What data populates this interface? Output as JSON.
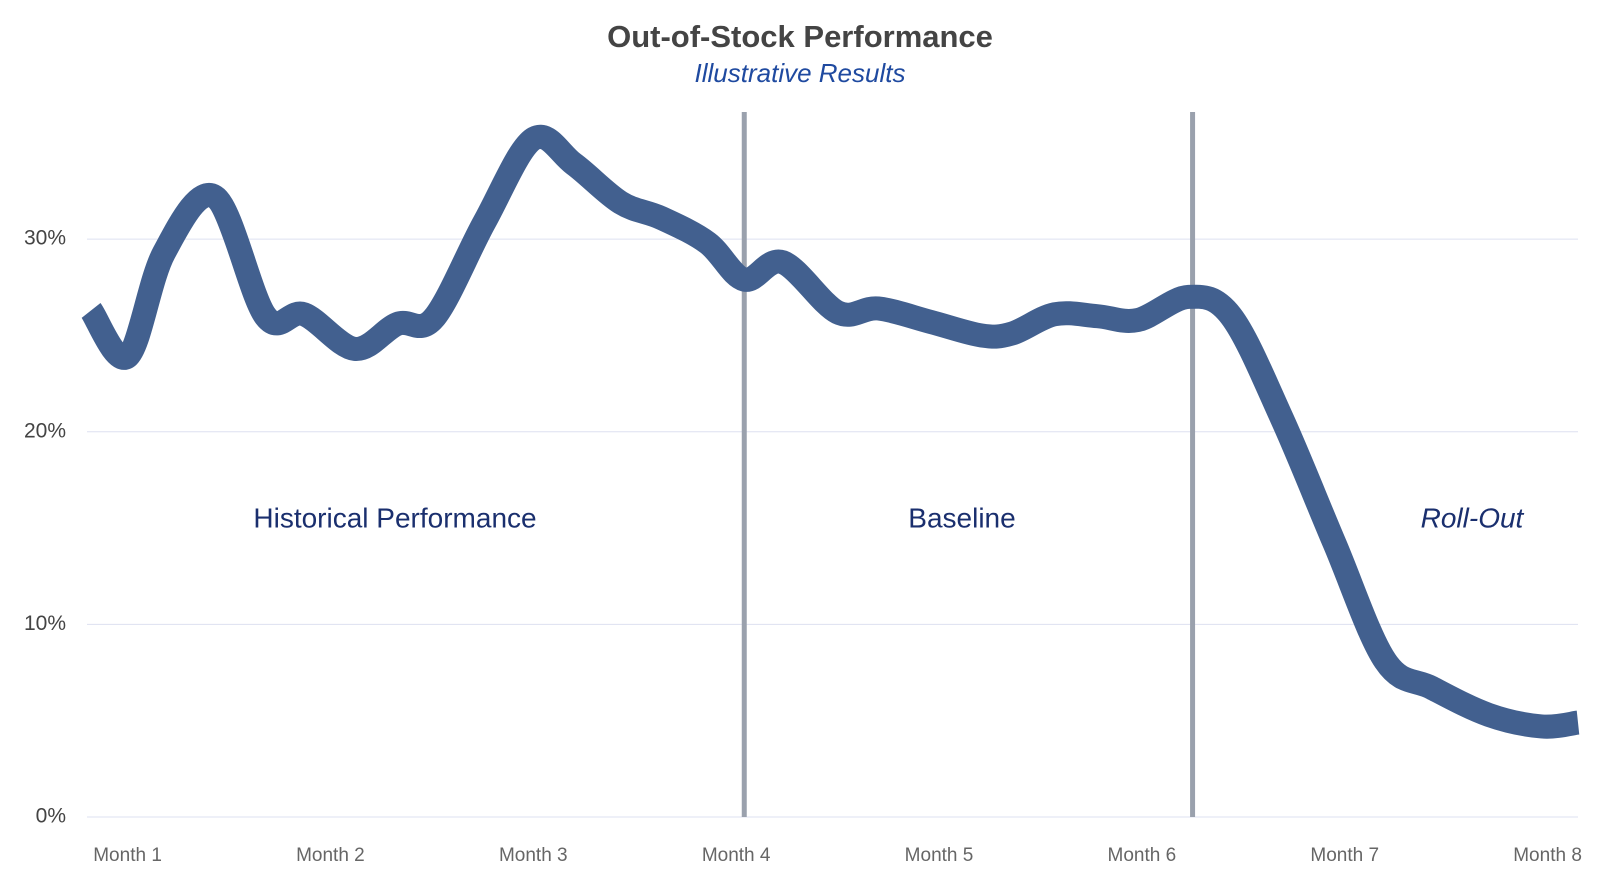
{
  "chart_data": {
    "type": "line",
    "title": "Out-of-Stock Performance",
    "subtitle": "Illustrative Results",
    "x": [
      0.82,
      1.0,
      1.18,
      1.43,
      1.68,
      1.87,
      2.12,
      2.33,
      2.51,
      2.76,
      3.0,
      3.2,
      3.43,
      3.63,
      3.86,
      4.04,
      4.23,
      4.5,
      4.7,
      4.96,
      5.21,
      5.36,
      5.57,
      5.78,
      5.98,
      6.23,
      6.44,
      6.69,
      6.95,
      7.2,
      7.43,
      7.71,
      7.97,
      8.15
    ],
    "series": [
      {
        "name": "Out-of-Stock",
        "color": "#42608f",
        "values": [
          26.3,
          23.9,
          29.3,
          32.2,
          26.0,
          26.1,
          24.3,
          25.6,
          25.9,
          30.9,
          35.2,
          33.9,
          31.9,
          31.1,
          29.8,
          27.9,
          28.8,
          26.2,
          26.4,
          25.7,
          25.0,
          25.1,
          26.1,
          26.0,
          25.8,
          27.0,
          26.0,
          20.7,
          14.2,
          8.1,
          6.7,
          5.3,
          4.7,
          4.9
        ]
      }
    ],
    "xlim": [
      0.8,
      8.15
    ],
    "xticks": [
      {
        "value": 1,
        "label": "Month 1"
      },
      {
        "value": 2,
        "label": "Month 2"
      },
      {
        "value": 3,
        "label": "Month 3"
      },
      {
        "value": 4,
        "label": "Month 4"
      },
      {
        "value": 5,
        "label": "Month 5"
      },
      {
        "value": 6,
        "label": "Month 6"
      },
      {
        "value": 7,
        "label": "Month 7"
      },
      {
        "value": 8,
        "label": "Month 8"
      }
    ],
    "ylim": [
      0,
      36.6
    ],
    "yticks": [
      {
        "value": 0,
        "label": "0%"
      },
      {
        "value": 10,
        "label": "10%"
      },
      {
        "value": 20,
        "label": "20%"
      },
      {
        "value": 30,
        "label": "30%"
      }
    ],
    "grid": true,
    "phase_lines": [
      4.04,
      6.25
    ],
    "annotations": [
      "Historical Performance",
      "Baseline",
      "Roll-Out"
    ]
  }
}
